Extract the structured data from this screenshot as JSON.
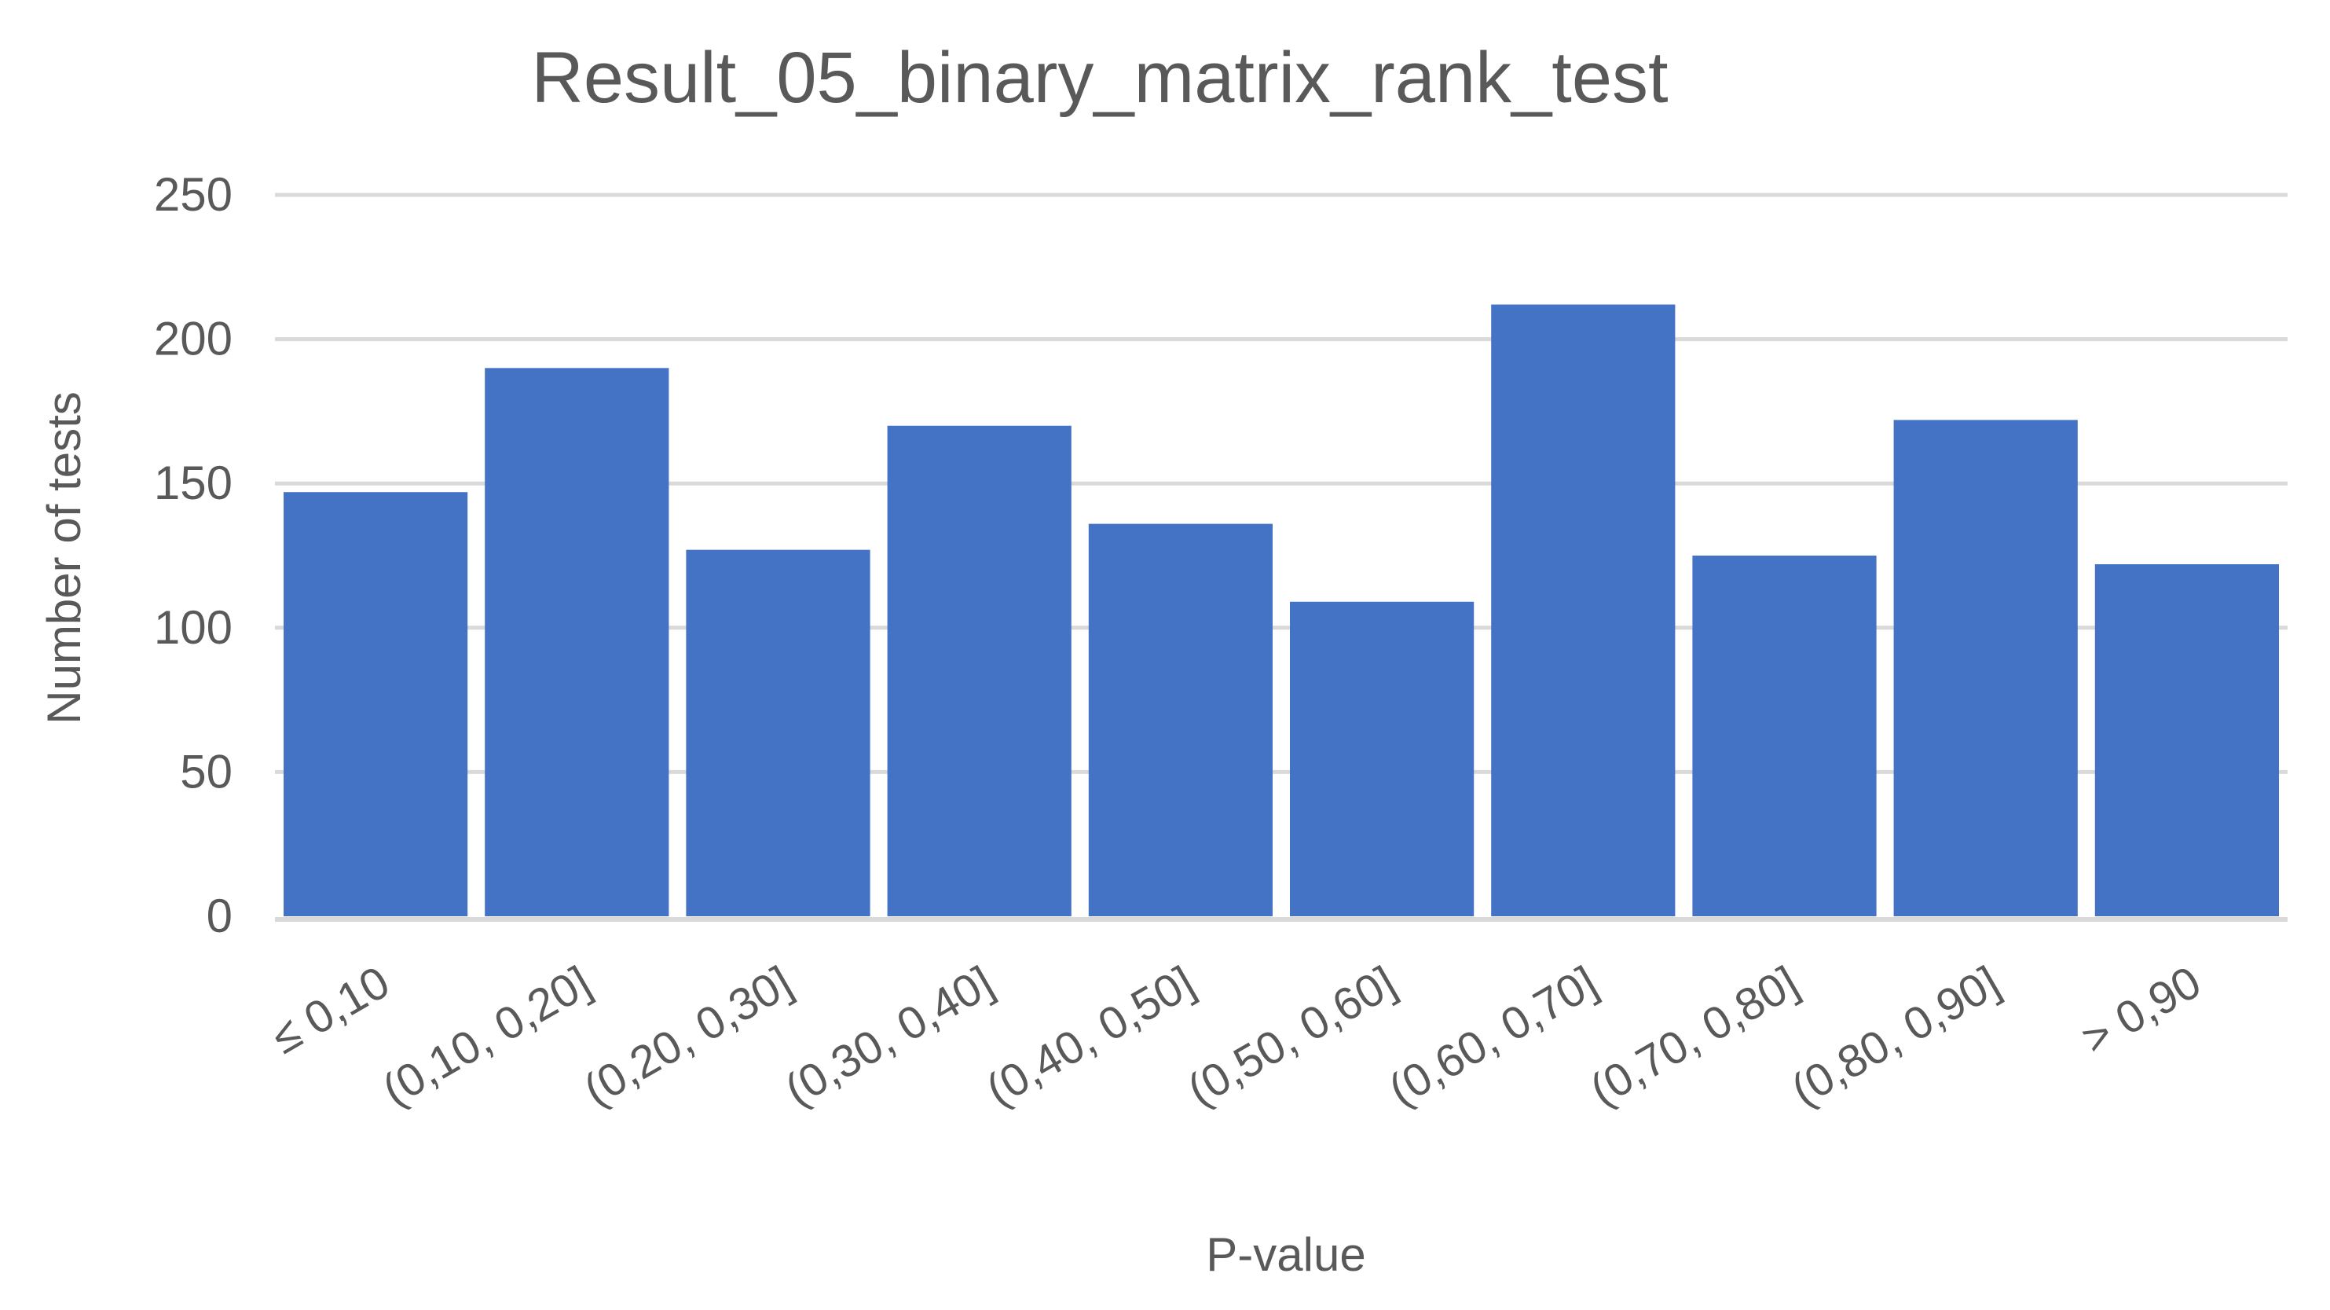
{
  "chart_data": {
    "type": "bar",
    "title": "Result_05_binary_matrix_rank_test",
    "xlabel": "P-value",
    "ylabel": "Number of tests",
    "categories": [
      "≤ 0,10",
      "(0,10, 0,20]",
      "(0,20, 0,30]",
      "(0,30, 0,40]",
      "(0,40, 0,50]",
      "(0,50, 0,60]",
      "(0,60, 0,70]",
      "(0,70, 0,80]",
      "(0,80, 0,90]",
      "> 0,90"
    ],
    "values": [
      147,
      190,
      127,
      170,
      136,
      109,
      212,
      125,
      172,
      122
    ],
    "ylim": [
      0,
      250
    ],
    "yticks": [
      0,
      50,
      100,
      150,
      200,
      250
    ],
    "grid": true,
    "legend": "none",
    "bar_color": "#4472C4",
    "gridline_color": "#D9D9D9",
    "axis_color": "#D9D9D9",
    "text_color": "#595959"
  }
}
